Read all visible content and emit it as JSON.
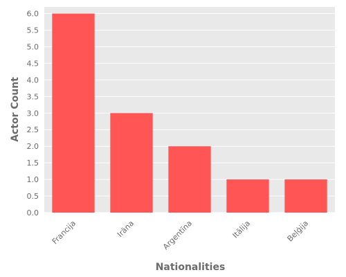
{
  "chart_data": {
    "type": "bar",
    "title": "",
    "xlabel": "Nationalities",
    "ylabel": "Actor Count",
    "categories": [
      "Francija",
      "Irāna",
      "Argentīna",
      "Itālija",
      "Beļģija"
    ],
    "values": [
      6,
      3,
      2,
      1,
      1
    ],
    "ylim": [
      0,
      6.2
    ],
    "yticks": [
      "0.0",
      "0.5",
      "1.0",
      "1.5",
      "2.0",
      "2.5",
      "3.0",
      "3.5",
      "4.0",
      "4.5",
      "5.0",
      "5.5",
      "6.0"
    ],
    "grid": true,
    "colors": {
      "bar": "#ff5555",
      "background": "#e9e9e9",
      "grid": "#ffffff",
      "text": "#6b6b6b"
    }
  }
}
